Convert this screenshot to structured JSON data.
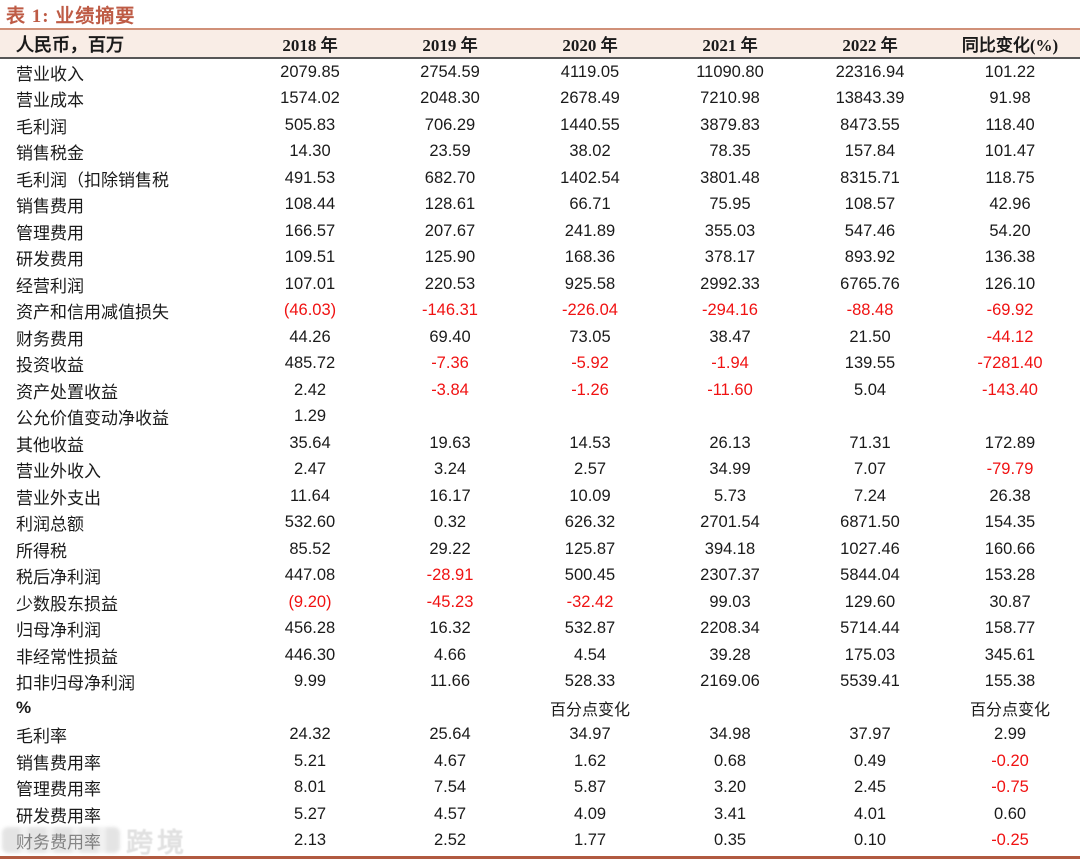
{
  "title": "表 1:  业绩摘要",
  "watermark": {
    "text": "跨境"
  },
  "colors": {
    "accent_title": "#BE5B45",
    "title_underline": "#D09078",
    "header_bg": "#F9EDE6",
    "header_border": "#575757",
    "bottom_border": "#B15A40",
    "negative_value": "#F01212"
  },
  "table": {
    "unit_header": "人民币，百万",
    "columns": [
      "2018 年",
      "2019 年",
      "2020 年",
      "2021 年",
      "2022 年",
      "同比变化(%)"
    ],
    "rows": [
      {
        "label": "营业收入",
        "values": [
          "2079.85",
          "2754.59",
          "4119.05",
          "11090.80",
          "22316.94",
          "101.22"
        ]
      },
      {
        "label": "营业成本",
        "values": [
          "1574.02",
          "2048.30",
          "2678.49",
          "7210.98",
          "13843.39",
          "91.98"
        ]
      },
      {
        "label": "毛利润",
        "values": [
          "505.83",
          "706.29",
          "1440.55",
          "3879.83",
          "8473.55",
          "118.40"
        ]
      },
      {
        "label": "销售税金",
        "values": [
          "14.30",
          "23.59",
          "38.02",
          "78.35",
          "157.84",
          "101.47"
        ]
      },
      {
        "label": "毛利润（扣除销售税",
        "values": [
          "491.53",
          "682.70",
          "1402.54",
          "3801.48",
          "8315.71",
          "118.75"
        ]
      },
      {
        "label": "销售费用",
        "values": [
          "108.44",
          "128.61",
          "66.71",
          "75.95",
          "108.57",
          "42.96"
        ]
      },
      {
        "label": "管理费用",
        "values": [
          "166.57",
          "207.67",
          "241.89",
          "355.03",
          "547.46",
          "54.20"
        ]
      },
      {
        "label": "研发费用",
        "values": [
          "109.51",
          "125.90",
          "168.36",
          "378.17",
          "893.92",
          "136.38"
        ]
      },
      {
        "label": "经营利润",
        "values": [
          "107.01",
          "220.53",
          "925.58",
          "2992.33",
          "6765.76",
          "126.10"
        ]
      },
      {
        "label": "资产和信用减值损失",
        "values": [
          "(46.03)",
          "-146.31",
          "-226.04",
          "-294.16",
          "-88.48",
          "-69.92"
        ]
      },
      {
        "label": "财务费用",
        "values": [
          "44.26",
          "69.40",
          "73.05",
          "38.47",
          "21.50",
          "-44.12"
        ]
      },
      {
        "label": "投资收益",
        "values": [
          "485.72",
          "-7.36",
          "-5.92",
          "-1.94",
          "139.55",
          "-7281.40"
        ]
      },
      {
        "label": "资产处置收益",
        "values": [
          "2.42",
          "-3.84",
          "-1.26",
          "-11.60",
          "5.04",
          "-143.40"
        ]
      },
      {
        "label": "公允价值变动净收益",
        "values": [
          "1.29",
          "",
          "",
          "",
          "",
          ""
        ]
      },
      {
        "label": "其他收益",
        "values": [
          "35.64",
          "19.63",
          "14.53",
          "26.13",
          "71.31",
          "172.89"
        ]
      },
      {
        "label": "营业外收入",
        "values": [
          "2.47",
          "3.24",
          "2.57",
          "34.99",
          "7.07",
          "-79.79"
        ]
      },
      {
        "label": "营业外支出",
        "values": [
          "11.64",
          "16.17",
          "10.09",
          "5.73",
          "7.24",
          "26.38"
        ]
      },
      {
        "label": "利润总额",
        "values": [
          "532.60",
          "0.32",
          "626.32",
          "2701.54",
          "6871.50",
          "154.35"
        ]
      },
      {
        "label": "所得税",
        "values": [
          "85.52",
          "29.22",
          "125.87",
          "394.18",
          "1027.46",
          "160.66"
        ]
      },
      {
        "label": "税后净利润",
        "values": [
          "447.08",
          "-28.91",
          "500.45",
          "2307.37",
          "5844.04",
          "153.28"
        ]
      },
      {
        "label": "少数股东损益",
        "values": [
          "(9.20)",
          "-45.23",
          "-32.42",
          "99.03",
          "129.60",
          "30.87"
        ]
      },
      {
        "label": "归母净利润",
        "values": [
          "456.28",
          "16.32",
          "532.87",
          "2208.34",
          "5714.44",
          "158.77"
        ]
      },
      {
        "label": "非经常性损益",
        "values": [
          "446.30",
          "4.66",
          "4.54",
          "39.28",
          "175.03",
          "345.61"
        ]
      },
      {
        "label": "扣非归母净利润",
        "values": [
          "9.99",
          "11.66",
          "528.33",
          "2169.06",
          "5539.41",
          "155.38"
        ]
      },
      {
        "label": "%",
        "bold": true,
        "values": [
          "",
          "",
          "百分点变化",
          "",
          "",
          "百分点变化"
        ]
      },
      {
        "label": "毛利率",
        "values": [
          "24.32",
          "25.64",
          "34.97",
          "34.98",
          "37.97",
          "2.99"
        ]
      },
      {
        "label": "销售费用率",
        "values": [
          "5.21",
          "4.67",
          "1.62",
          "0.68",
          "0.49",
          "-0.20"
        ]
      },
      {
        "label": "管理费用率",
        "values": [
          "8.01",
          "7.54",
          "5.87",
          "3.20",
          "2.45",
          "-0.75"
        ]
      },
      {
        "label": "研发费用率",
        "values": [
          "5.27",
          "4.57",
          "4.09",
          "3.41",
          "4.01",
          "0.60"
        ]
      },
      {
        "label": "财务费用率",
        "values": [
          "2.13",
          "2.52",
          "1.77",
          "0.35",
          "0.10",
          "-0.25"
        ]
      }
    ]
  }
}
